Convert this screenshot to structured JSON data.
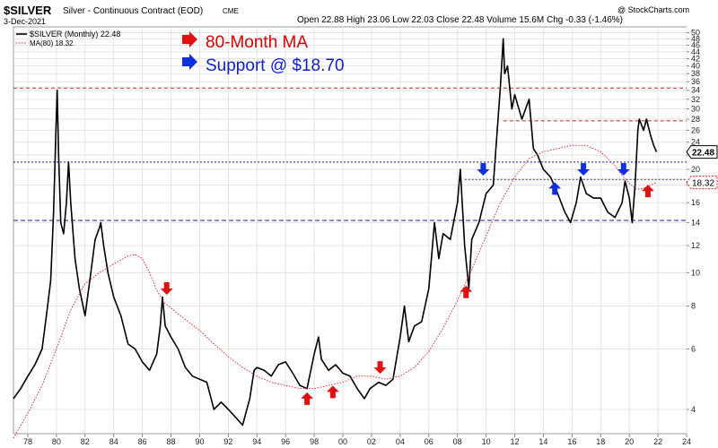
{
  "header": {
    "symbol": "$SILVER",
    "description": "Silver - Continuous Contract (EOD)",
    "exchange": "CME",
    "date": "3-Dec-2021",
    "ohlc_text": "Open 22.88  High 23.06  Low 22.03  Close 22.48  Volume 15.6M  Chg -0.33 (-1.46%)",
    "watermark": "@ StockCharts.com"
  },
  "legend": {
    "price_label": "$SILVER (Monthly) 22.48",
    "ma_label": "MA(80) 18.32"
  },
  "annotations": {
    "ma_text": "80-Month MA",
    "support_text": "Support @ $18.70"
  },
  "colors": {
    "price": "#000000",
    "ma": "#d62020",
    "red_dash": "#cc2222",
    "blue_dash": "#1a1a99",
    "up_arrow": "#e01010",
    "down_arrow": "#1030e0",
    "grid": "#e3e3e3"
  },
  "chart_data": {
    "type": "line",
    "title": "$SILVER Silver - Continuous Contract (EOD)",
    "xlabel": "",
    "ylabel": "",
    "y_scale": "log",
    "ylim": [
      3.4,
      52
    ],
    "xlim": [
      1977,
      2024
    ],
    "x_ticks": [
      "78",
      "80",
      "82",
      "84",
      "86",
      "88",
      "90",
      "92",
      "94",
      "96",
      "98",
      "00",
      "02",
      "04",
      "06",
      "08",
      "10",
      "12",
      "14",
      "16",
      "18",
      "20",
      "22",
      "24"
    ],
    "y_ticks": [
      4,
      6,
      8,
      10,
      12,
      14,
      16,
      18,
      20,
      22,
      24,
      26,
      28,
      30,
      32,
      34,
      36,
      38,
      40,
      42,
      44,
      46,
      48,
      50
    ],
    "grid": true,
    "series": [
      {
        "name": "$SILVER (Monthly)",
        "x": [
          1977.0,
          1977.5,
          1978.0,
          1978.5,
          1979.0,
          1979.3,
          1979.6,
          1979.8,
          1979.95,
          1980.05,
          1980.15,
          1980.3,
          1980.5,
          1980.7,
          1980.85,
          1981.0,
          1981.3,
          1981.6,
          1982.0,
          1982.4,
          1982.7,
          1983.0,
          1983.1,
          1983.3,
          1983.6,
          1984.0,
          1984.5,
          1985.0,
          1985.5,
          1986.0,
          1986.5,
          1987.0,
          1987.25,
          1987.4,
          1987.6,
          1988.0,
          1988.5,
          1989.0,
          1989.5,
          1990.0,
          1990.5,
          1991.0,
          1991.5,
          1992.0,
          1992.5,
          1993.0,
          1993.5,
          1993.8,
          1994.0,
          1994.5,
          1995.0,
          1995.5,
          1996.0,
          1996.5,
          1997.0,
          1997.5,
          1998.0,
          1998.3,
          1998.5,
          1999.0,
          1999.5,
          2000.0,
          2000.5,
          2001.0,
          2001.5,
          2001.9,
          2002.5,
          2003.0,
          2003.5,
          2004.0,
          2004.3,
          2004.6,
          2005.0,
          2005.5,
          2006.0,
          2006.4,
          2006.7,
          2007.0,
          2007.5,
          2008.0,
          2008.2,
          2008.5,
          2008.8,
          2009.0,
          2009.5,
          2010.0,
          2010.5,
          2011.0,
          2011.2,
          2011.3,
          2011.5,
          2011.8,
          2012.0,
          2012.5,
          2013.0,
          2013.3,
          2013.6,
          2014.0,
          2014.5,
          2015.0,
          2015.5,
          2015.9,
          2016.3,
          2016.6,
          2017.0,
          2017.5,
          2018.0,
          2018.5,
          2019.0,
          2019.5,
          2019.7,
          2020.0,
          2020.2,
          2020.4,
          2020.6,
          2020.7,
          2021.0,
          2021.2,
          2021.5,
          2021.7,
          2021.9
        ],
        "y": [
          4.3,
          4.6,
          5.0,
          5.4,
          6.0,
          7.5,
          9.5,
          15.0,
          25.0,
          34.0,
          22.0,
          14.0,
          13.0,
          16.0,
          21.0,
          16.0,
          11.0,
          9.0,
          7.5,
          10.0,
          12.5,
          13.5,
          14.0,
          12.0,
          10.0,
          8.5,
          7.5,
          6.2,
          6.0,
          5.5,
          5.2,
          5.8,
          7.0,
          8.5,
          7.0,
          6.5,
          6.0,
          5.3,
          5.0,
          4.9,
          4.8,
          4.0,
          4.2,
          4.0,
          3.8,
          3.6,
          4.3,
          5.2,
          5.3,
          5.2,
          5.0,
          5.4,
          5.5,
          5.1,
          4.7,
          4.6,
          5.8,
          6.5,
          5.6,
          5.2,
          5.4,
          5.1,
          5.0,
          4.6,
          4.3,
          4.6,
          4.8,
          4.7,
          4.9,
          6.5,
          8.0,
          6.3,
          7.0,
          7.2,
          9.0,
          14.0,
          11.0,
          13.0,
          12.5,
          16.0,
          20.0,
          12.0,
          9.0,
          12.5,
          14.0,
          17.0,
          18.0,
          35.0,
          48.0,
          38.0,
          40.0,
          30.0,
          33.0,
          28.0,
          32.0,
          23.0,
          22.0,
          20.0,
          19.0,
          17.0,
          15.0,
          14.0,
          16.0,
          19.0,
          17.0,
          16.5,
          16.5,
          15.0,
          14.5,
          16.0,
          18.5,
          16.5,
          14.0,
          18.0,
          26.0,
          28.0,
          26.0,
          28.0,
          25.0,
          23.5,
          22.48
        ]
      },
      {
        "name": "MA(80)",
        "x": [
          1977.0,
          1978.0,
          1979.0,
          1980.0,
          1981.0,
          1982.0,
          1983.0,
          1984.0,
          1985.0,
          1985.5,
          1986.0,
          1986.5,
          1987.0,
          1987.5,
          1988.0,
          1989.0,
          1990.0,
          1991.0,
          1992.0,
          1993.0,
          1994.0,
          1995.0,
          1996.0,
          1997.0,
          1998.0,
          1999.0,
          2000.0,
          2001.0,
          2002.0,
          2003.0,
          2004.0,
          2005.0,
          2006.0,
          2007.0,
          2008.0,
          2009.0,
          2010.0,
          2011.0,
          2012.0,
          2013.0,
          2014.0,
          2015.0,
          2016.0,
          2017.0,
          2018.0,
          2019.0,
          2019.5,
          2020.0,
          2020.5,
          2021.0,
          2021.5,
          2021.9
        ],
        "y": [
          3.3,
          3.9,
          4.7,
          6.0,
          7.8,
          9.3,
          10.0,
          10.6,
          11.2,
          11.3,
          11.0,
          10.0,
          8.9,
          8.2,
          7.9,
          7.3,
          6.8,
          6.2,
          5.7,
          5.3,
          5.0,
          4.8,
          4.7,
          4.6,
          4.6,
          4.7,
          4.8,
          5.0,
          5.0,
          4.9,
          5.0,
          5.3,
          5.9,
          6.9,
          8.3,
          10.2,
          12.8,
          16.0,
          19.0,
          21.5,
          22.5,
          23.0,
          23.5,
          23.5,
          22.5,
          20.5,
          19.2,
          18.2,
          17.5,
          17.6,
          18.0,
          18.32
        ]
      }
    ],
    "horizontal_levels": [
      {
        "value": 34.5,
        "style": "red-dash"
      },
      {
        "value": 27.7,
        "style": "red-dash"
      },
      {
        "value": 21.0,
        "style": "blue-dot"
      },
      {
        "value": 18.7,
        "style": "blue-dot"
      },
      {
        "value": 14.2,
        "style": "blue-dash"
      }
    ],
    "red_up_arrows": [
      {
        "x": 1997.5,
        "y": 4.3
      },
      {
        "x": 1999.3,
        "y": 4.5
      },
      {
        "x": 2008.6,
        "y": 8.8
      },
      {
        "x": 2021.3,
        "y": 17.3
      }
    ],
    "red_down_arrows": [
      {
        "x": 1987.7,
        "y": 9.0
      },
      {
        "x": 2002.6,
        "y": 5.3
      }
    ],
    "blue_down_arrows": [
      {
        "x": 2009.8,
        "y": 20.0
      },
      {
        "x": 2016.8,
        "y": 20.0
      },
      {
        "x": 2019.6,
        "y": 20.0
      }
    ],
    "blue_up_arrows": [
      {
        "x": 2014.8,
        "y": 17.6
      }
    ],
    "value_tags": [
      {
        "label": "22.48",
        "value": 22.48,
        "style": "price"
      },
      {
        "label": "18.32",
        "value": 18.32,
        "style": "ma"
      }
    ]
  }
}
